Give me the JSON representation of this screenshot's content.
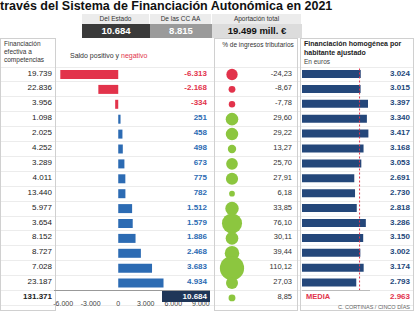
{
  "title": "través del Sistema de Financiación Autonómica en 2021",
  "header": {
    "labels": [
      "Del Estado",
      "De las CC AA",
      "Aportación total"
    ],
    "values": [
      "10.684",
      "8.815",
      "19.499 mill. €"
    ]
  },
  "table": {
    "header": "Financiación efectiva a competencias",
    "rows": [
      "19.739",
      "22.836",
      "3.956",
      "1.098",
      "2.025",
      "4.252",
      "3.289",
      "4.011",
      "13.440",
      "5.977",
      "3.654",
      "8.152",
      "8.727",
      "7.028",
      "23.187"
    ],
    "total": "131.371"
  },
  "chart_data": [
    {
      "type": "bar",
      "orientation": "horizontal",
      "title": "Saldo positivo y negativo",
      "categories": [
        null,
        null,
        null,
        null,
        null,
        null,
        null,
        null,
        null,
        null,
        null,
        null,
        null,
        null,
        null
      ],
      "values": [
        -6313,
        -2168,
        -334,
        251,
        458,
        498,
        673,
        775,
        782,
        1512,
        1579,
        1886,
        2468,
        3683,
        4934
      ],
      "value_labels": [
        "-6.313",
        "-2.168",
        "-334",
        "251",
        "458",
        "498",
        "673",
        "775",
        "782",
        "1.512",
        "1.579",
        "1.886",
        "2.468",
        "3.683",
        "4.934"
      ],
      "data_labels": true,
      "colors": [
        "#e2334b",
        "#e2334b",
        "#e2334b",
        "#2c6bb3",
        "#2c6bb3",
        "#2c6bb3",
        "#2c6bb3",
        "#2c6bb3",
        "#2c6bb3",
        "#2c6bb3",
        "#2c6bb3",
        "#2c6bb3",
        "#2c6bb3",
        "#2c6bb3",
        "#2c6bb3"
      ],
      "xlim": [
        -7000,
        10000
      ],
      "xticks": [
        {
          "value": -6000,
          "label": "-6.000"
        },
        {
          "value": -3000,
          "label": "-3.000"
        },
        0,
        {
          "value": 3000,
          "label": "3.000"
        },
        {
          "value": 6000,
          "label": "6.000"
        },
        {
          "value": 9000,
          "label": "9.000"
        }
      ],
      "total": "10.684"
    },
    {
      "type": "scatter",
      "title": "% de ingresos tributarios",
      "categories": [
        null,
        null,
        null,
        null,
        null,
        null,
        null,
        null,
        null,
        null,
        null,
        null,
        null,
        null,
        null,
        null
      ],
      "values": [
        -24.23,
        -8.67,
        -7.78,
        29.6,
        29.22,
        13.27,
        25.7,
        27.91,
        6.18,
        33.85,
        76.1,
        30.11,
        39.44,
        110.12,
        27.03,
        8.85
      ],
      "value_labels": [
        "-24,23",
        "-8,67",
        "-7,78",
        "29,60",
        "29,22",
        "13,27",
        "25,70",
        "27,91",
        "6,18",
        "33,85",
        "76,10",
        "30,11",
        "39,44",
        "110,12",
        "27,03",
        "8,85"
      ],
      "data_labels": true,
      "colors": [
        "#e2334b",
        "#e2334b",
        "#e2334b",
        "#8cc63f",
        "#8cc63f",
        "#8cc63f",
        "#8cc63f",
        "#8cc63f",
        "#8cc63f",
        "#8cc63f",
        "#8cc63f",
        "#8cc63f",
        "#8cc63f",
        "#8cc63f",
        "#8cc63f",
        "#8cc63f"
      ]
    },
    {
      "type": "bar",
      "orientation": "horizontal",
      "title": "Financiación homogénea por habitante ajustado",
      "subtitle": "En euros",
      "categories": [
        null,
        null,
        null,
        null,
        null,
        null,
        null,
        null,
        null,
        null,
        null,
        null,
        null,
        null,
        null
      ],
      "values": [
        3024,
        3015,
        3397,
        3340,
        3417,
        3168,
        3053,
        2691,
        2730,
        2818,
        3286,
        3150,
        3002,
        3174,
        2793
      ],
      "value_labels": [
        "3.024",
        "3.015",
        "3.397",
        "3.340",
        "3.417",
        "3.168",
        "3.053",
        "2.691",
        "2.730",
        "2.818",
        "3.286",
        "3.150",
        "3.002",
        "3.174",
        "2.793"
      ],
      "data_labels": true,
      "color": "#24477a",
      "xlim": [
        0,
        3500
      ],
      "tick_labels": false,
      "mean": {
        "label": "MEDIA",
        "value": 2963,
        "value_label": "2.963",
        "color": "#e2334b"
      }
    }
  ],
  "source": "C. CORTINAS / CINCO DÍAS"
}
